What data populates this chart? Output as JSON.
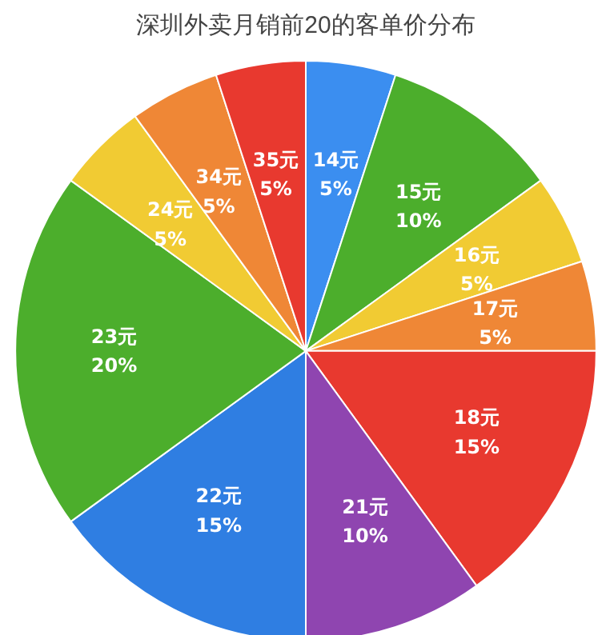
{
  "chart_data": {
    "type": "pie",
    "title": "深圳外卖月销前20的客单价分布",
    "categories": [
      "14元",
      "15元",
      "16元",
      "17元",
      "18元",
      "21元",
      "22元",
      "23元",
      "24元",
      "34元",
      "35元"
    ],
    "values": [
      5,
      10,
      5,
      5,
      15,
      10,
      15,
      20,
      5,
      5,
      5
    ],
    "value_labels": [
      "5%",
      "10%",
      "5%",
      "5%",
      "15%",
      "10%",
      "15%",
      "20%",
      "5%",
      "5%",
      "5%"
    ],
    "colors": [
      "#3b8ef0",
      "#4cae2c",
      "#f1cb33",
      "#ef8736",
      "#e8392f",
      "#8f45b0",
      "#2f7ee2",
      "#4cae2c",
      "#f1cb33",
      "#ef8736",
      "#e8392f"
    ],
    "legend": false
  }
}
